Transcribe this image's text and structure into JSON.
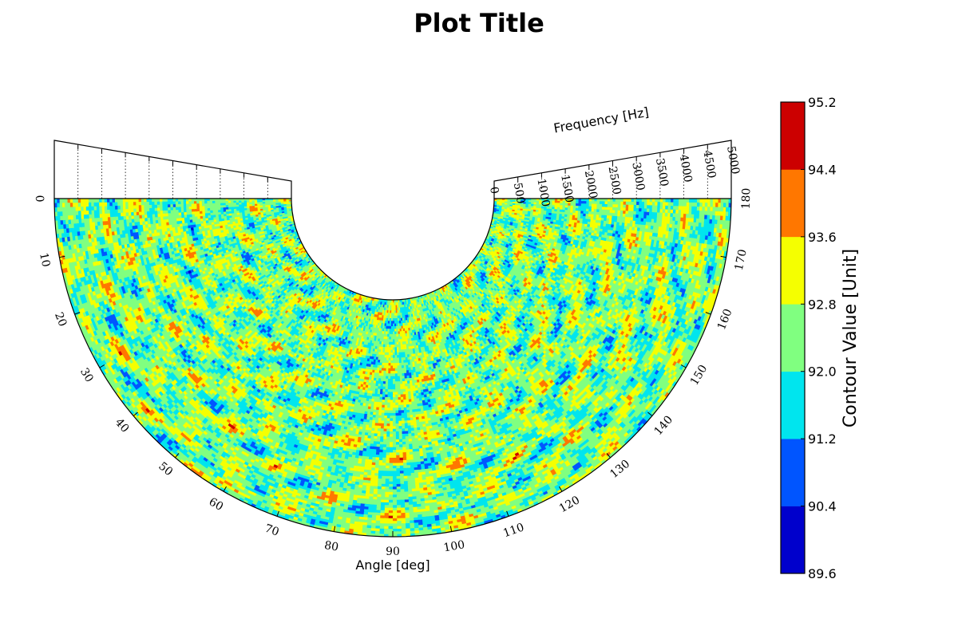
{
  "chart_data": {
    "type": "heatmap",
    "subtype": "polar-contour-half-annulus",
    "title": "Plot Title",
    "angle_axis": {
      "label": "Angle [deg]",
      "range": [
        0,
        180
      ],
      "ticks": [
        0,
        10,
        20,
        30,
        40,
        50,
        60,
        70,
        80,
        90,
        100,
        110,
        120,
        130,
        140,
        150,
        160,
        170,
        180
      ]
    },
    "frequency_axis": {
      "label": "Frequency [Hz]",
      "range": [
        0,
        5000
      ],
      "ticks": [
        0,
        500,
        1000,
        1500,
        2000,
        2500,
        3000,
        3500,
        4000,
        4500,
        5000
      ]
    },
    "colorbar": {
      "label": "Contour Value [Unit]",
      "ticks": [
        "89.6",
        "90.4",
        "91.2",
        "92.0",
        "92.8",
        "93.6",
        "94.4",
        "95.2"
      ],
      "levels": [
        {
          "from": 89.6,
          "to": 90.4,
          "color": "#0000cc"
        },
        {
          "from": 90.4,
          "to": 91.2,
          "color": "#0055ff"
        },
        {
          "from": 91.2,
          "to": 92.0,
          "color": "#00e5ee"
        },
        {
          "from": 92.0,
          "to": 92.8,
          "color": "#80ff80"
        },
        {
          "from": 92.8,
          "to": 93.6,
          "color": "#f5ff00"
        },
        {
          "from": 93.6,
          "to": 94.4,
          "color": "#ff7700"
        },
        {
          "from": 94.4,
          "to": 95.2,
          "color": "#cc0000"
        }
      ]
    },
    "grid": true
  }
}
